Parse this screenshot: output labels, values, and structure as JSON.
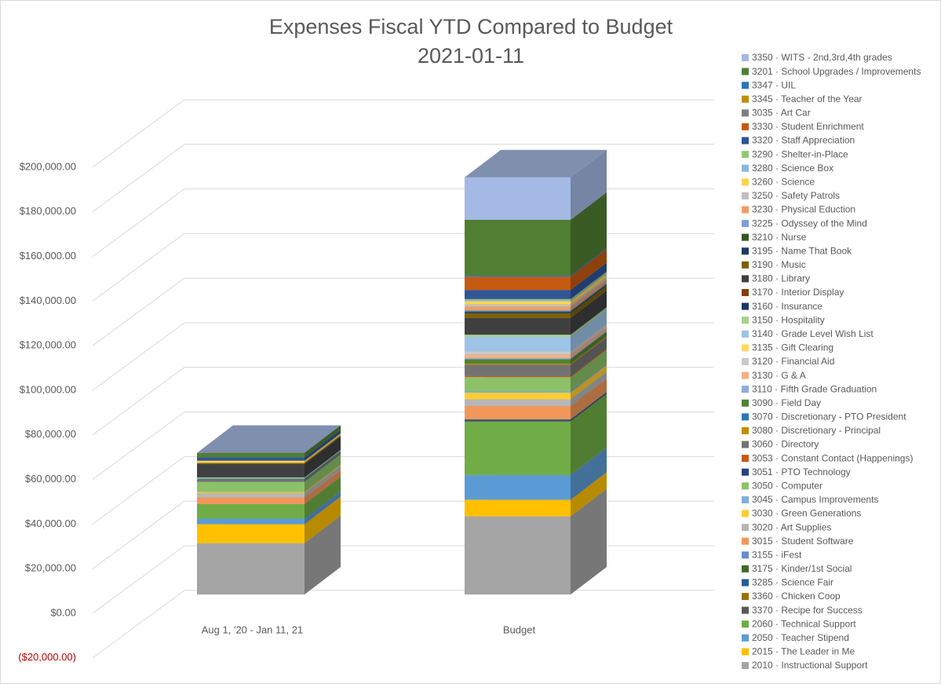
{
  "chart_data": {
    "type": "bar3d_stacked",
    "title": "Expenses Fiscal YTD Compared to Budget",
    "subtitle": "2021-01-11",
    "categories": [
      "Aug 1, '20 - Jan 11, 21",
      "Budget"
    ],
    "ylim": [
      -20000,
      200000
    ],
    "yticks": [
      {
        "value": -20000,
        "label": "($20,000.00)"
      },
      {
        "value": 0,
        "label": "$0.00"
      },
      {
        "value": 20000,
        "label": "$20,000.00"
      },
      {
        "value": 40000,
        "label": "$40,000.00"
      },
      {
        "value": 60000,
        "label": "$60,000.00"
      },
      {
        "value": 80000,
        "label": "$80,000.00"
      },
      {
        "value": 100000,
        "label": "$100,000.00"
      },
      {
        "value": 120000,
        "label": "$120,000.00"
      },
      {
        "value": 140000,
        "label": "$140,000.00"
      },
      {
        "value": 160000,
        "label": "$160,000.00"
      },
      {
        "value": 180000,
        "label": "$180,000.00"
      },
      {
        "value": 200000,
        "label": "$200,000.00"
      }
    ],
    "negative_tick_color": "#c00000",
    "grid": true,
    "legend": "right",
    "series": [
      {
        "name": "2010 · Instructional Support",
        "color": "#a5a5a5",
        "values": [
          23000,
          35000
        ]
      },
      {
        "name": "2015 · The Leader in Me",
        "color": "#ffc000",
        "values": [
          8500,
          7500
        ]
      },
      {
        "name": "2050 · Teacher Stipend",
        "color": "#5b9bd5",
        "values": [
          2500,
          11000
        ]
      },
      {
        "name": "2060 · Technical Support",
        "color": "#70ad47",
        "values": [
          6500,
          24000
        ]
      },
      {
        "name": "3370 · Recipe for Success",
        "color": "#595959",
        "values": [
          0,
          500
        ]
      },
      {
        "name": "3360 · Chicken Coop",
        "color": "#997300",
        "values": [
          0,
          0
        ]
      },
      {
        "name": "3285 · Science Fair",
        "color": "#255e91",
        "values": [
          0,
          500
        ]
      },
      {
        "name": "3175 · Kinder/1st Social",
        "color": "#43682b",
        "values": [
          0,
          0
        ]
      },
      {
        "name": "3155 · iFest",
        "color": "#698ed0",
        "values": [
          0,
          0
        ]
      },
      {
        "name": "3015 · Student Software",
        "color": "#f1975a",
        "values": [
          3000,
          6000
        ]
      },
      {
        "name": "3020 · Art Supplies",
        "color": "#b7b7b7",
        "values": [
          2000,
          3000
        ]
      },
      {
        "name": "3030 · Green Generations",
        "color": "#ffcd33",
        "values": [
          500,
          3000
        ]
      },
      {
        "name": "3045 · Campus Improvements",
        "color": "#7cafdd",
        "values": [
          0,
          500
        ]
      },
      {
        "name": "3050 · Computer",
        "color": "#8cc168",
        "values": [
          4500,
          6500
        ]
      },
      {
        "name": "3051 · PTO Technology",
        "color": "#264478",
        "values": [
          0,
          0
        ]
      },
      {
        "name": "3053 · Constant  Contact (Happenings)",
        "color": "#c55a11",
        "values": [
          0,
          500
        ]
      },
      {
        "name": "3060 · Directory",
        "color": "#737373",
        "values": [
          1000,
          5000
        ]
      },
      {
        "name": "3080 · Discretionary - Principal",
        "color": "#bf9000",
        "values": [
          0,
          500
        ]
      },
      {
        "name": "3070 · Discretionary - PTO President",
        "color": "#2e75b6",
        "values": [
          0,
          0
        ]
      },
      {
        "name": "3090 · Field Day",
        "color": "#548235",
        "values": [
          500,
          2000
        ]
      },
      {
        "name": "3110 · Fifth Grade Graduation",
        "color": "#8faadc",
        "values": [
          0,
          500
        ]
      },
      {
        "name": "3130 · G & A",
        "color": "#f4b183",
        "values": [
          0,
          1500
        ]
      },
      {
        "name": "3120 · Financial Aid",
        "color": "#c9c9c9",
        "values": [
          0,
          1500
        ]
      },
      {
        "name": "3135 · Gift Clearing",
        "color": "#ffd966",
        "values": [
          0,
          0
        ]
      },
      {
        "name": "3140 · Grade Level Wish List",
        "color": "#9dc3e6",
        "values": [
          500,
          6500
        ]
      },
      {
        "name": "3150 · Hospitality",
        "color": "#a9d18e",
        "values": [
          0,
          1000
        ]
      },
      {
        "name": "3160 · Insurance",
        "color": "#1f3864",
        "values": [
          0,
          0
        ]
      },
      {
        "name": "3170 · Interior Display",
        "color": "#843c0c",
        "values": [
          0,
          0
        ]
      },
      {
        "name": "3180 · Library",
        "color": "#404040",
        "values": [
          6000,
          7500
        ]
      },
      {
        "name": "3190 · Music",
        "color": "#7f6000",
        "values": [
          500,
          2000
        ]
      },
      {
        "name": "3195 · Name That Book",
        "color": "#203864",
        "values": [
          0,
          500
        ]
      },
      {
        "name": "3210 · Nurse",
        "color": "#375623",
        "values": [
          0,
          500
        ]
      },
      {
        "name": "3225 · Odyssey of the Mind",
        "color": "#7f9fd6",
        "values": [
          0,
          500
        ]
      },
      {
        "name": "3230 · Physical Eduction",
        "color": "#f19c64",
        "values": [
          0,
          1500
        ]
      },
      {
        "name": "3250 · Safety Patrols",
        "color": "#bfbfbf",
        "values": [
          0,
          1000
        ]
      },
      {
        "name": "3260 · Science",
        "color": "#ffd54f",
        "values": [
          1000,
          1500
        ]
      },
      {
        "name": "3280 · Science Box",
        "color": "#8ab7e0",
        "values": [
          0,
          500
        ]
      },
      {
        "name": "3290 · Shelter-in-Place",
        "color": "#94c973",
        "values": [
          0,
          500
        ]
      },
      {
        "name": "3320 · Staff Appreciation",
        "color": "#2f5597",
        "values": [
          1500,
          4000
        ]
      },
      {
        "name": "3330 · Student Enrichment",
        "color": "#c55a11",
        "values": [
          0,
          6000
        ]
      },
      {
        "name": "3035 · Art Car",
        "color": "#7f7f7f",
        "values": [
          0,
          0
        ]
      },
      {
        "name": "3345 · Teacher of the Year",
        "color": "#bf8f00",
        "values": [
          0,
          0
        ]
      },
      {
        "name": "3347 · UIL",
        "color": "#2e75b6",
        "values": [
          0,
          500
        ]
      },
      {
        "name": "3201 · School Upgrades / Improvements",
        "color": "#507e32",
        "values": [
          2000,
          25000
        ]
      },
      {
        "name": "3350 · WITS - 2nd,3rd,4th grades",
        "color": "#a4b9e3",
        "values": [
          0,
          19000
        ]
      }
    ]
  }
}
